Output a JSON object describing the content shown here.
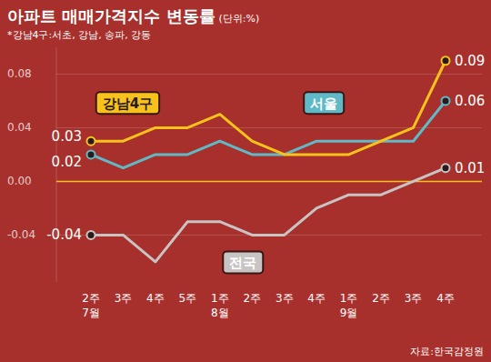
{
  "chart_data": {
    "type": "line",
    "title": "아파트 매매가격지수 변동률",
    "y_label": "(단위:%)",
    "subtitle": "*강남4구:서초, 강남, 송파, 강동",
    "source": "자료:한국감정원",
    "categories": [
      "2주\n7월",
      "3주",
      "4주",
      "5주",
      "1주\n8월",
      "2주",
      "3주",
      "4주",
      "1주\n9월",
      "2주",
      "3주",
      "4주"
    ],
    "ylim": [
      -0.075,
      0.1
    ],
    "yticks": [
      -0.04,
      {
        "value": 0,
        "label": "0.00"
      },
      0.04,
      0.08
    ],
    "grid": true,
    "data_labels": true,
    "series": [
      {
        "name": "강남4구",
        "color": "#f7c21b",
        "marker": "circle",
        "values": [
          0.03,
          0.03,
          0.04,
          0.04,
          0.05,
          0.03,
          0.02,
          0.02,
          0.02,
          0.03,
          0.04,
          0.09
        ],
        "value_labels": [
          "0.03",
          null,
          null,
          null,
          null,
          null,
          null,
          null,
          null,
          null,
          null,
          "0.09"
        ]
      },
      {
        "name": "서울",
        "color": "#5fb9c6",
        "marker": "circle",
        "values": [
          0.02,
          0.01,
          0.02,
          0.02,
          0.03,
          0.02,
          0.02,
          0.03,
          0.03,
          0.03,
          0.03,
          0.06
        ],
        "value_labels": [
          "0.02",
          null,
          null,
          null,
          null,
          null,
          null,
          null,
          null,
          null,
          null,
          "0.06"
        ]
      },
      {
        "name": "전국",
        "color": "#c9c4c4",
        "marker": "circle",
        "values": [
          -0.04,
          -0.04,
          -0.06,
          -0.03,
          -0.03,
          -0.04,
          -0.04,
          -0.02,
          -0.01,
          -0.01,
          0.0,
          0.01
        ],
        "value_labels": [
          "-0.04",
          null,
          null,
          null,
          null,
          null,
          null,
          null,
          null,
          null,
          null,
          "0.01"
        ]
      }
    ]
  }
}
